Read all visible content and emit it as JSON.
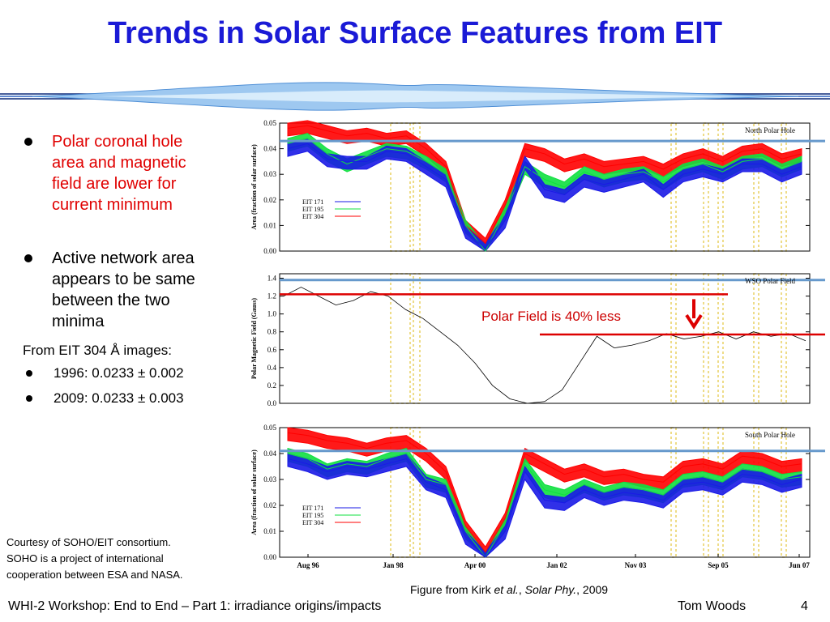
{
  "title": "Trends in Solar Surface Features from EIT",
  "bullets": [
    {
      "lines": [
        "Polar coronal hole",
        "area and magnetic",
        "field are lower for",
        "current minimum"
      ],
      "color": "#e00000"
    },
    {
      "lines": [
        "Active network area",
        "appears to be same",
        "between the two",
        "minima"
      ],
      "color": "#000000"
    }
  ],
  "eit_heading": "From EIT 304 Å images:",
  "eit_items": [
    "1996:  0.0233 ± 0.002",
    "2009: 0.0233 ± 0.003"
  ],
  "credit_lines": [
    "Courtesy of SOHO/EIT consortium.",
    "SOHO is a project of international",
    "cooperation between ESA and NASA."
  ],
  "caption": {
    "prefix": "Figure from Kirk ",
    "etal": "et al.",
    "sep": ", ",
    "journal": "Solar Phy.",
    "year": ", 2009"
  },
  "footer": "WHI-2 Workshop: End to End – Part 1: irradiance origins/impacts",
  "author": "Tom Woods",
  "page_number": "4",
  "colors": {
    "title": "#1a1ad6",
    "eit171": "#1a1ae6",
    "eit195": "#10e040",
    "eit304": "#ff0000",
    "refline": "#6699cc",
    "annotation": "#dd0000",
    "yellow": "#e8d060"
  },
  "chart_data": [
    {
      "type": "area",
      "panel_label": "North Polar Hole",
      "ylabel": "Area (fraction of solar surface)",
      "yticks": [
        "0.00",
        "0.01",
        "0.02",
        "0.03",
        "0.04",
        "0.05"
      ],
      "ylim": [
        0,
        0.05
      ],
      "xticks": [
        "Aug 96",
        "Jan 98",
        "Apr 00",
        "Jan 02",
        "Nov 03",
        "Sep 05",
        "Jun 07"
      ],
      "legend": [
        "EIT 171",
        "EIT 195",
        "EIT 304"
      ],
      "reference_level": 0.043,
      "series": [
        {
          "name": "EIT 304",
          "values": [
            0.048,
            0.049,
            0.047,
            0.045,
            0.046,
            0.044,
            0.045,
            0.04,
            0.033,
            0.01,
            0.003,
            0.018,
            0.04,
            0.038,
            0.034,
            0.036,
            0.033,
            0.034,
            0.035,
            0.032,
            0.036,
            0.038,
            0.035,
            0.039,
            0.04,
            0.036,
            0.038
          ]
        },
        {
          "name": "EIT 195",
          "values": [
            0.042,
            0.044,
            0.038,
            0.034,
            0.037,
            0.04,
            0.039,
            0.035,
            0.03,
            0.01,
            0.0,
            0.015,
            0.033,
            0.028,
            0.025,
            0.031,
            0.028,
            0.03,
            0.031,
            0.027,
            0.032,
            0.034,
            0.031,
            0.035,
            0.036,
            0.032,
            0.035
          ]
        },
        {
          "name": "EIT 171",
          "values": [
            0.04,
            0.042,
            0.036,
            0.035,
            0.035,
            0.039,
            0.038,
            0.033,
            0.028,
            0.008,
            0.001,
            0.012,
            0.035,
            0.024,
            0.022,
            0.028,
            0.026,
            0.028,
            0.03,
            0.024,
            0.03,
            0.032,
            0.03,
            0.034,
            0.034,
            0.03,
            0.033
          ]
        }
      ]
    },
    {
      "type": "line",
      "panel_label": "WSO Polar Field",
      "ylabel": "Polar Magnetic Field (Gauss)",
      "yticks": [
        "0.0",
        "0.2",
        "0.4",
        "0.6",
        "0.8",
        "1.0",
        "1.2",
        "1.4"
      ],
      "ylim": [
        0,
        1.45
      ],
      "annotation": "Polar Field is 40% less",
      "reference_levels": [
        1.22,
        0.77
      ],
      "reference_level_top": 1.38,
      "series": [
        {
          "name": "WSO Polar Field",
          "values": [
            1.2,
            1.3,
            1.2,
            1.1,
            1.15,
            1.25,
            1.2,
            1.05,
            0.95,
            0.8,
            0.65,
            0.45,
            0.2,
            0.05,
            0.0,
            0.02,
            0.15,
            0.45,
            0.75,
            0.62,
            0.65,
            0.7,
            0.78,
            0.72,
            0.75,
            0.8,
            0.72,
            0.8,
            0.75,
            0.78,
            0.7
          ]
        }
      ]
    },
    {
      "type": "area",
      "panel_label": "South Polar Hole",
      "ylabel": "Area (fraction of solar surface)",
      "yticks": [
        "0.00",
        "0.01",
        "0.02",
        "0.03",
        "0.04",
        "0.05"
      ],
      "ylim": [
        0,
        0.05
      ],
      "legend": [
        "EIT 171",
        "EIT 195",
        "EIT 304"
      ],
      "reference_level": 0.041,
      "series": [
        {
          "name": "EIT 304",
          "values": [
            0.048,
            0.047,
            0.045,
            0.044,
            0.042,
            0.044,
            0.045,
            0.04,
            0.033,
            0.012,
            0.002,
            0.015,
            0.04,
            0.036,
            0.032,
            0.034,
            0.031,
            0.032,
            0.03,
            0.029,
            0.035,
            0.036,
            0.034,
            0.039,
            0.038,
            0.035,
            0.036
          ]
        },
        {
          "name": "EIT 195",
          "values": [
            0.04,
            0.038,
            0.034,
            0.036,
            0.035,
            0.038,
            0.04,
            0.03,
            0.028,
            0.01,
            0.0,
            0.013,
            0.036,
            0.026,
            0.024,
            0.028,
            0.025,
            0.027,
            0.026,
            0.024,
            0.03,
            0.031,
            0.029,
            0.034,
            0.033,
            0.03,
            0.031
          ]
        },
        {
          "name": "EIT 171",
          "values": [
            0.038,
            0.036,
            0.033,
            0.035,
            0.034,
            0.036,
            0.038,
            0.029,
            0.026,
            0.008,
            0.0,
            0.01,
            0.033,
            0.022,
            0.021,
            0.026,
            0.023,
            0.025,
            0.024,
            0.022,
            0.028,
            0.029,
            0.027,
            0.032,
            0.031,
            0.028,
            0.03
          ]
        }
      ]
    }
  ]
}
